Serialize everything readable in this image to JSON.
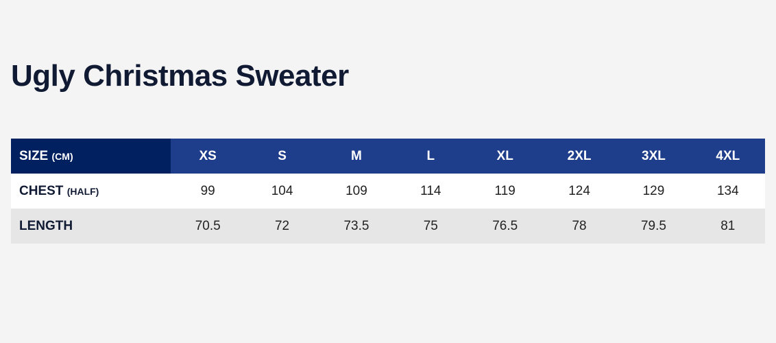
{
  "title": "Ugly Christmas Sweater",
  "table": {
    "header": {
      "label": "SIZE",
      "unit": "(CM)"
    },
    "sizes": [
      "XS",
      "S",
      "M",
      "L",
      "XL",
      "2XL",
      "3XL",
      "4XL"
    ],
    "rows": [
      {
        "label": "CHEST",
        "qualifier": "(HALF)",
        "values": [
          "99",
          "104",
          "109",
          "114",
          "119",
          "124",
          "129",
          "134"
        ]
      },
      {
        "label": "LENGTH",
        "qualifier": "",
        "values": [
          "70.5",
          "72",
          "73.5",
          "75",
          "76.5",
          "78",
          "79.5",
          "81"
        ]
      }
    ]
  },
  "colors": {
    "header_first": "#002060",
    "header": "#1e3d8a",
    "row_alt": "#e6e6e6",
    "background": "#f4f4f4"
  }
}
